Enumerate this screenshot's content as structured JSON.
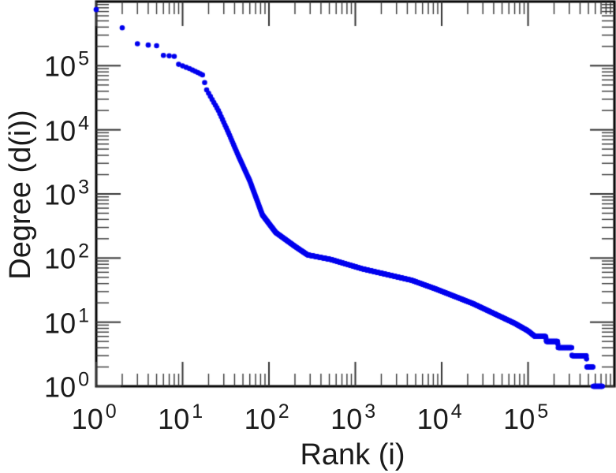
{
  "figure": {
    "background": "#ffffff",
    "border_color": "#000000",
    "tick_color": "#333333",
    "text_color": "#1a1a1a"
  },
  "chart_data": {
    "type": "scatter",
    "title": "",
    "xlabel": "Rank (i)",
    "ylabel": "Degree (d(i))",
    "x_scale": "log",
    "y_scale": "log",
    "xlim": [
      1,
      1000000
    ],
    "ylim": [
      1,
      1000000
    ],
    "grid": false,
    "legend": "none",
    "tick_label_base": "10",
    "x_tick_exponents": [
      0,
      1,
      2,
      3,
      4,
      5
    ],
    "y_tick_exponents": [
      0,
      1,
      2,
      3,
      4,
      5
    ],
    "marker_color": "#0000ee",
    "marker_shape": "filled-circle",
    "series": [
      {
        "name": "degree-vs-rank",
        "points": [
          [
            1,
            750000
          ],
          [
            2,
            390000
          ],
          [
            3,
            220000
          ],
          [
            4,
            210000
          ],
          [
            5,
            205000
          ],
          [
            6,
            145000
          ],
          [
            8,
            140000
          ],
          [
            9,
            105000
          ],
          [
            12,
            90000
          ],
          [
            16,
            75000
          ],
          [
            17,
            72000
          ],
          [
            19,
            42000
          ],
          [
            26,
            20000
          ],
          [
            34,
            9000
          ],
          [
            44,
            4000
          ],
          [
            60,
            1600
          ],
          [
            84,
            470
          ],
          [
            120,
            250
          ],
          [
            200,
            152
          ],
          [
            280,
            112
          ],
          [
            520,
            95
          ],
          [
            1200,
            68
          ],
          [
            4500,
            45
          ],
          [
            8500,
            33
          ],
          [
            23000,
            19.5
          ],
          [
            70000,
            9.6
          ],
          [
            100000,
            7.3
          ],
          [
            120000,
            6
          ],
          [
            160000,
            6
          ],
          [
            163000,
            5
          ],
          [
            220000,
            5
          ],
          [
            223000,
            4
          ],
          [
            320000,
            4
          ],
          [
            323000,
            3
          ],
          [
            475000,
            3
          ],
          [
            478000,
            2
          ],
          [
            565000,
            2
          ],
          [
            568000,
            1
          ],
          [
            720000,
            1
          ]
        ]
      }
    ]
  }
}
